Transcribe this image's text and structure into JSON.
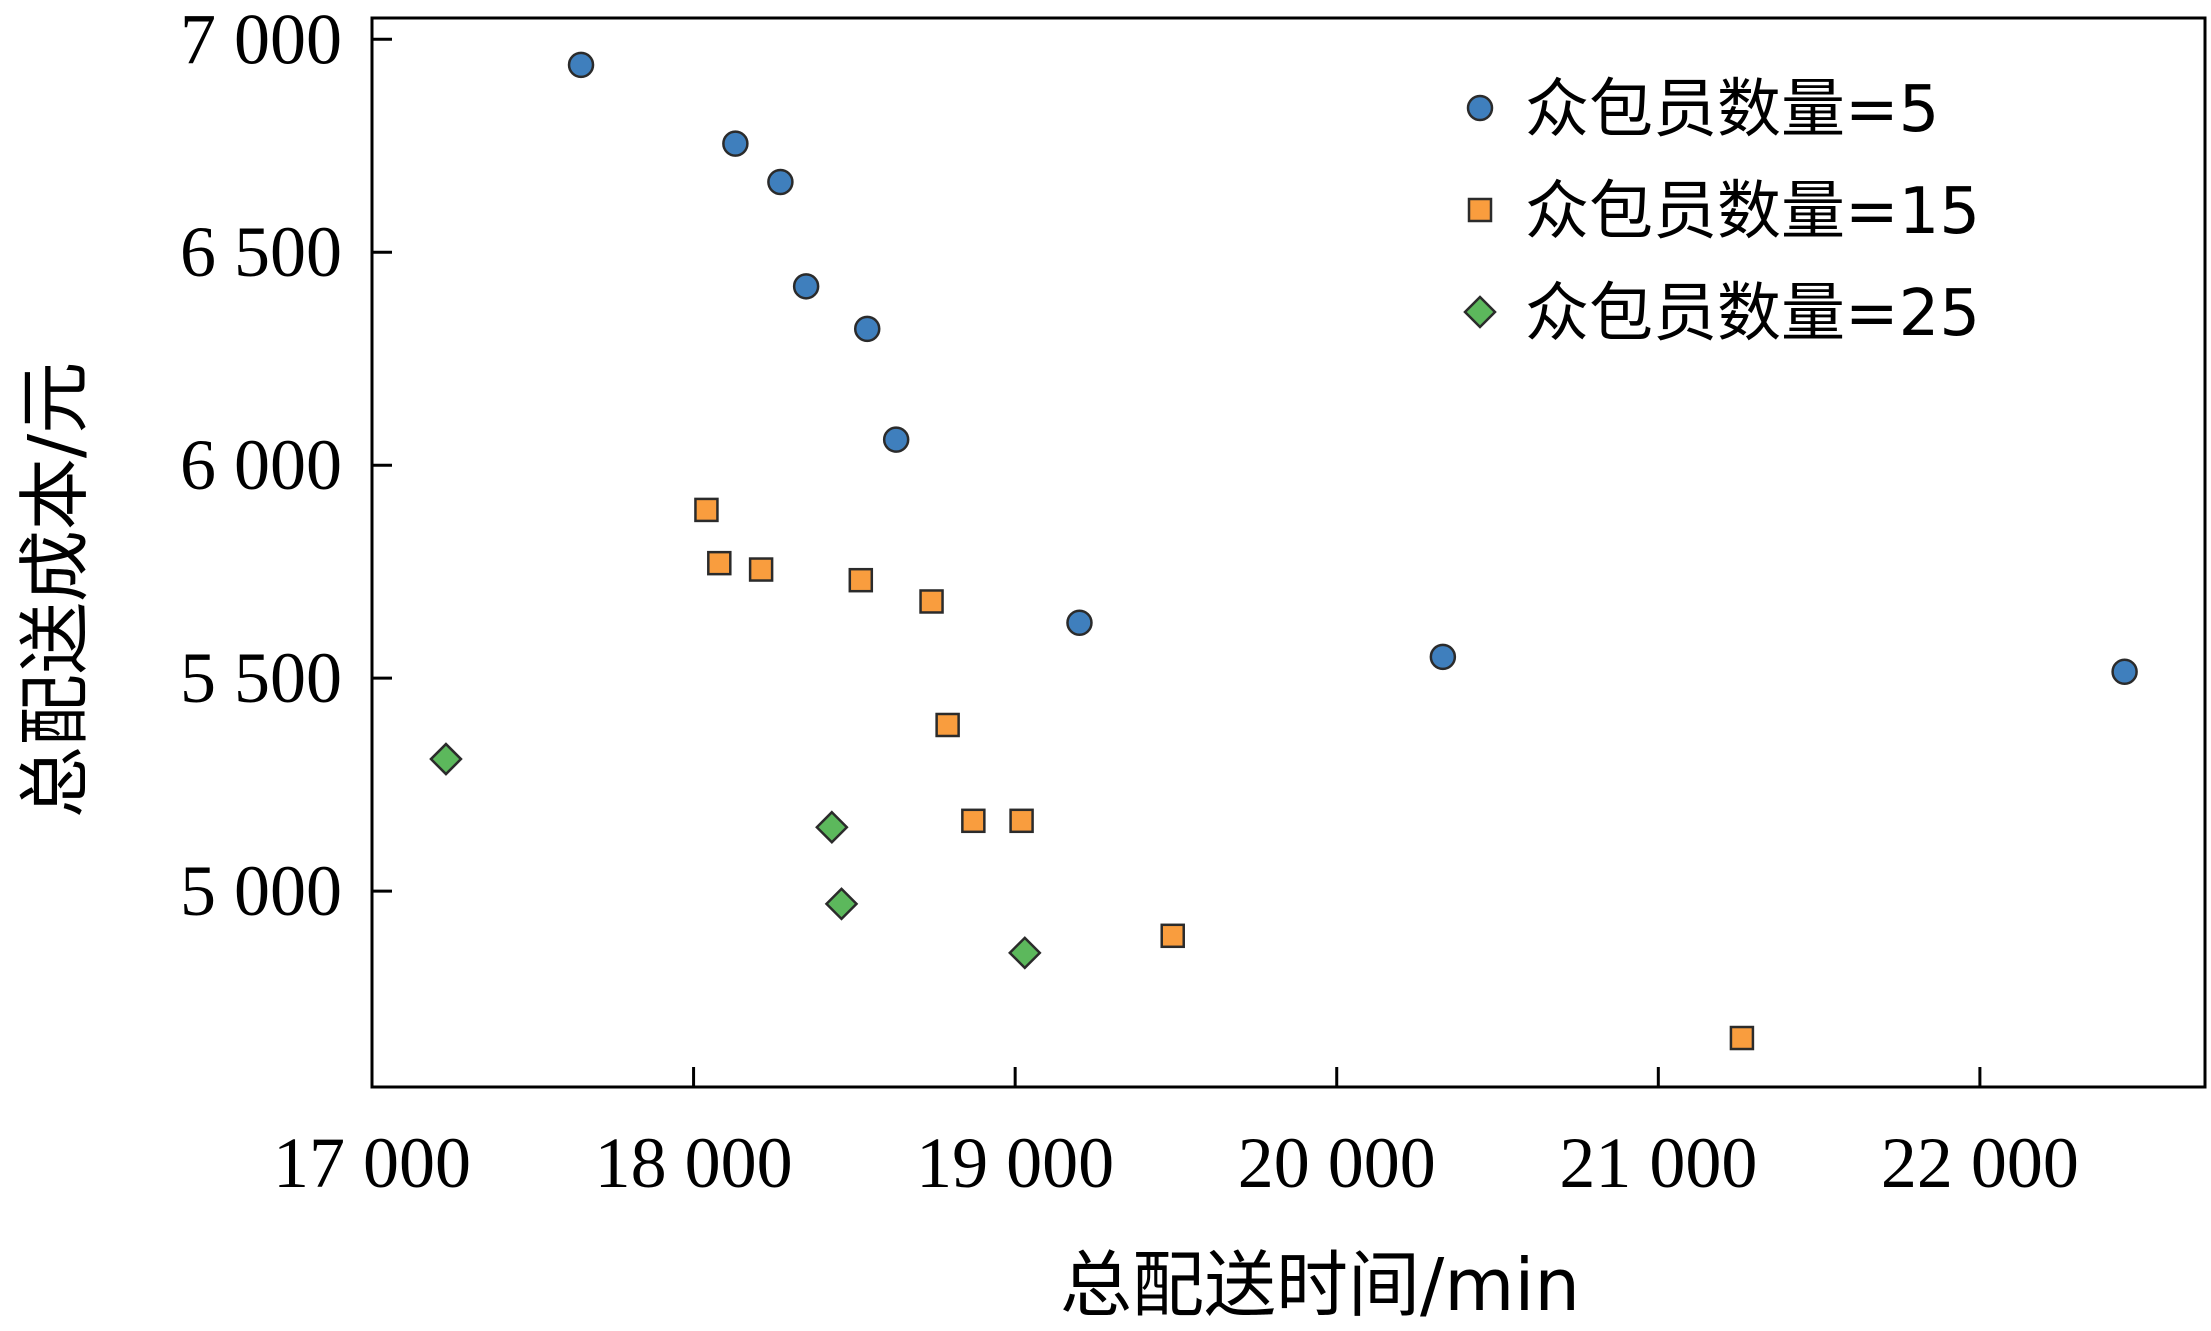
{
  "chart_data": {
    "type": "scatter",
    "title": "",
    "xlabel": "总配送时间/min",
    "ylabel": "总配送成本/元",
    "xlim": [
      17000,
      22700
    ],
    "ylim": [
      4540,
      7050
    ],
    "xticks": [
      17000,
      18000,
      19000,
      20000,
      21000,
      22000
    ],
    "yticks": [
      5000,
      5500,
      6000,
      6500,
      7000
    ],
    "xtick_labels": [
      "17 000",
      "18 000",
      "19 000",
      "20 000",
      "21 000",
      "22 000"
    ],
    "ytick_labels": [
      "5 000",
      "5 500",
      "6 000",
      "6 500",
      "7 000"
    ],
    "grid": false,
    "legend_position": "top-right",
    "series": [
      {
        "name": "众包员数量=5",
        "marker": "circle",
        "color": "#3f7fbd",
        "x": [
          17650,
          18130,
          18270,
          18350,
          18540,
          18630,
          19200,
          20330,
          22450
        ],
        "y": [
          6940,
          6755,
          6665,
          6420,
          6320,
          6060,
          5630,
          5550,
          5515
        ]
      },
      {
        "name": "众包员数量=15",
        "marker": "square",
        "color": "#f99d3e",
        "x": [
          18040,
          18080,
          18210,
          18520,
          18740,
          18790,
          18870,
          19020,
          19490,
          21260
        ],
        "y": [
          5895,
          5770,
          5755,
          5730,
          5680,
          5390,
          5165,
          5165,
          4895,
          4655
        ]
      },
      {
        "name": "众包员数量=25",
        "marker": "diamond",
        "color": "#5cb85c",
        "x": [
          17230,
          18430,
          18460,
          19030
        ],
        "y": [
          5310,
          5150,
          4970,
          4855
        ]
      }
    ]
  }
}
